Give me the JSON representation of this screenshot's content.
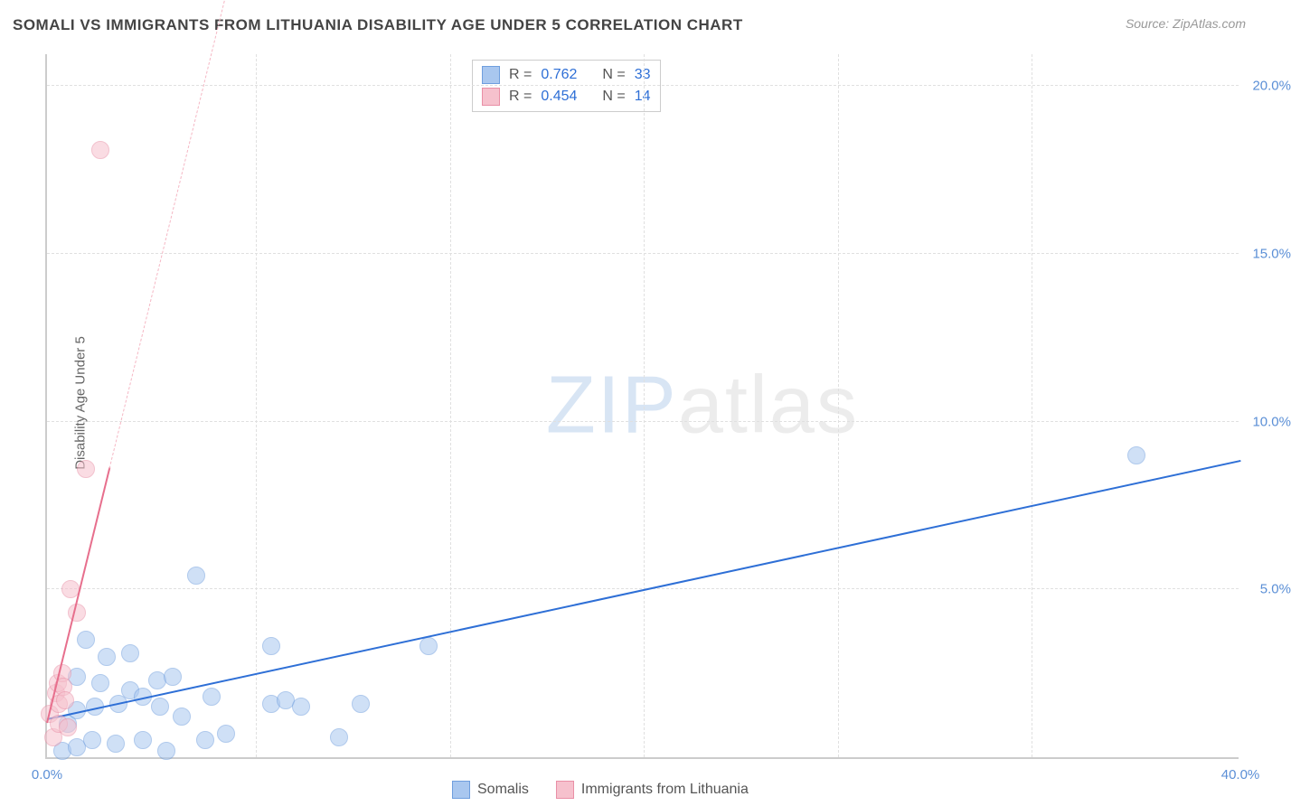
{
  "title": "SOMALI VS IMMIGRANTS FROM LITHUANIA DISABILITY AGE UNDER 5 CORRELATION CHART",
  "source": "Source: ZipAtlas.com",
  "y_axis_title": "Disability Age Under 5",
  "watermark_zip": "ZIP",
  "watermark_atlas": "atlas",
  "chart": {
    "type": "scatter",
    "background_color": "#ffffff",
    "grid_color": "#e0e0e0",
    "axis_color": "#cccccc",
    "tick_label_color": "#5b8fd6",
    "tick_fontsize": 15,
    "title_fontsize": 17,
    "title_color": "#444444",
    "xlim": [
      0,
      40
    ],
    "ylim": [
      0,
      21
    ],
    "xticks": [
      0,
      40
    ],
    "xtick_labels": [
      "0.0%",
      "40.0%"
    ],
    "yticks": [
      5,
      10,
      15,
      20
    ],
    "ytick_labels": [
      "5.0%",
      "10.0%",
      "15.0%",
      "20.0%"
    ],
    "x_gridlines_at": [
      7.0,
      13.5,
      20.0,
      26.5,
      33.0
    ],
    "marker_radius": 10,
    "marker_opacity": 0.55
  },
  "series": [
    {
      "name": "Somalis",
      "color_fill": "#a9c7ef",
      "color_stroke": "#6f9ede",
      "R_label": "R =",
      "R": "0.762",
      "N_label": "N =",
      "N": "33",
      "trend": {
        "x1": 0.0,
        "y1": 1.1,
        "x2": 40.0,
        "y2": 8.8,
        "color": "#2e6fd6",
        "width": 2.5,
        "dashed": false
      },
      "points": [
        {
          "x": 0.5,
          "y": 0.2
        },
        {
          "x": 0.7,
          "y": 1.0
        },
        {
          "x": 1.0,
          "y": 0.3
        },
        {
          "x": 1.0,
          "y": 1.4
        },
        {
          "x": 1.0,
          "y": 2.4
        },
        {
          "x": 1.3,
          "y": 3.5
        },
        {
          "x": 1.5,
          "y": 0.5
        },
        {
          "x": 1.6,
          "y": 1.5
        },
        {
          "x": 1.8,
          "y": 2.2
        },
        {
          "x": 2.0,
          "y": 3.0
        },
        {
          "x": 2.3,
          "y": 0.4
        },
        {
          "x": 2.4,
          "y": 1.6
        },
        {
          "x": 2.8,
          "y": 3.1
        },
        {
          "x": 2.8,
          "y": 2.0
        },
        {
          "x": 3.2,
          "y": 0.5
        },
        {
          "x": 3.2,
          "y": 1.8
        },
        {
          "x": 3.7,
          "y": 2.3
        },
        {
          "x": 3.8,
          "y": 1.5
        },
        {
          "x": 4.0,
          "y": 0.2
        },
        {
          "x": 4.2,
          "y": 2.4
        },
        {
          "x": 4.5,
          "y": 1.2
        },
        {
          "x": 5.0,
          "y": 5.4
        },
        {
          "x": 5.3,
          "y": 0.5
        },
        {
          "x": 5.5,
          "y": 1.8
        },
        {
          "x": 6.0,
          "y": 0.7
        },
        {
          "x": 7.5,
          "y": 1.6
        },
        {
          "x": 7.5,
          "y": 3.3
        },
        {
          "x": 8.0,
          "y": 1.7
        },
        {
          "x": 8.5,
          "y": 1.5
        },
        {
          "x": 9.8,
          "y": 0.6
        },
        {
          "x": 10.5,
          "y": 1.6
        },
        {
          "x": 12.8,
          "y": 3.3
        },
        {
          "x": 36.5,
          "y": 9.0
        }
      ]
    },
    {
      "name": "Immigrants from Lithuania",
      "color_fill": "#f6c1cd",
      "color_stroke": "#e98fa6",
      "R_label": "R =",
      "R": "0.454",
      "N_label": "N =",
      "N": "14",
      "trend_solid": {
        "x1": 0.0,
        "y1": 1.0,
        "x2": 2.1,
        "y2": 8.6,
        "color": "#e76f8d",
        "width": 2.5,
        "dashed": false
      },
      "trend_dashed": {
        "x1": 2.1,
        "y1": 8.6,
        "x2": 6.5,
        "y2": 24.5,
        "color": "#f5b7c4",
        "width": 1.2,
        "dashed": true
      },
      "points": [
        {
          "x": 0.1,
          "y": 1.3
        },
        {
          "x": 0.2,
          "y": 0.6
        },
        {
          "x": 0.3,
          "y": 1.9
        },
        {
          "x": 0.35,
          "y": 2.2
        },
        {
          "x": 0.4,
          "y": 1.0
        },
        {
          "x": 0.4,
          "y": 1.6
        },
        {
          "x": 0.5,
          "y": 2.5
        },
        {
          "x": 0.55,
          "y": 2.1
        },
        {
          "x": 0.6,
          "y": 1.7
        },
        {
          "x": 0.7,
          "y": 0.9
        },
        {
          "x": 0.8,
          "y": 5.0
        },
        {
          "x": 1.0,
          "y": 4.3
        },
        {
          "x": 1.3,
          "y": 8.6
        },
        {
          "x": 1.8,
          "y": 18.1
        }
      ]
    }
  ],
  "bottom_legend": [
    {
      "label": "Somalis",
      "fill": "#a9c7ef",
      "stroke": "#6f9ede"
    },
    {
      "label": "Immigrants from Lithuania",
      "fill": "#f6c1cd",
      "stroke": "#e98fa6"
    }
  ]
}
